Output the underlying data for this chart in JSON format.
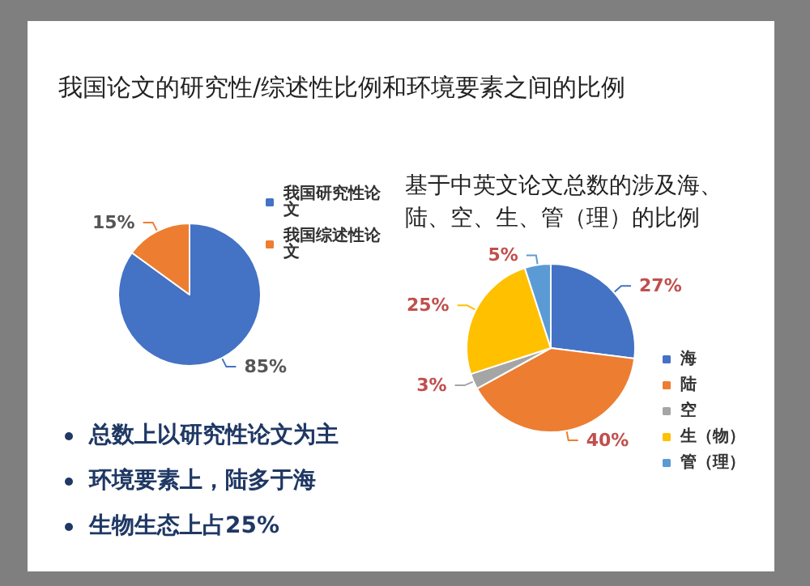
{
  "chart_data": [
    {
      "type": "pie",
      "title": "我国论文的研究性/综述性比例和环境要素之间的比例",
      "categories": [
        "我国研究性论文",
        "我国综述性论文"
      ],
      "values": [
        85,
        15
      ],
      "colors": [
        "#4472c4",
        "#ed7d31"
      ],
      "value_labels": [
        "85%",
        "15%"
      ],
      "legend": "right",
      "annotations": [
        "总数上以研究性论文为主",
        "环境要素上，陆多于海",
        "生物生态上占25%"
      ]
    },
    {
      "type": "pie",
      "title": "基于中英文论文总数的涉及海、陆、空、生、管（理）的比例",
      "categories": [
        "海",
        "陆",
        "空",
        "生（物）",
        "管（理）"
      ],
      "values": [
        27,
        40,
        3,
        25,
        5
      ],
      "colors": [
        "#4472c4",
        "#ed7d31",
        "#a5a5a5",
        "#ffc000",
        "#5b9bd5"
      ],
      "value_labels": [
        "27%",
        "40%",
        "3%",
        "25%",
        "5%"
      ],
      "legend": "right"
    }
  ]
}
